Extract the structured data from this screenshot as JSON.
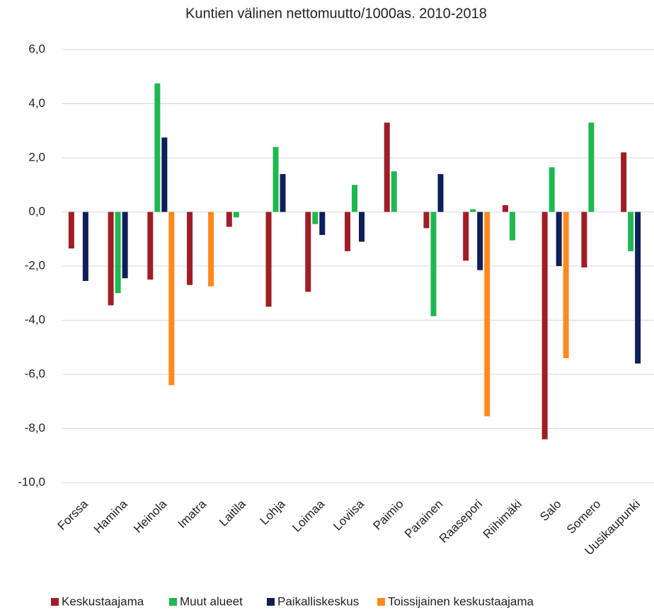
{
  "chart_data": {
    "type": "bar",
    "title": "Kuntien välinen nettomuutto/1000as. 2010-2018",
    "categories": [
      "Forssa",
      "Hamina",
      "Heinola",
      "Imatra",
      "Laitila",
      "Lohja",
      "Loimaa",
      "Loviisa",
      "Paimio",
      "Parainen",
      "Raasepori",
      "Riihimäki",
      "Salo",
      "Somero",
      "Uusikaupunki"
    ],
    "series": [
      {
        "name": "Keskustaajama",
        "color": "#a11d25",
        "values": [
          -1.35,
          -3.45,
          -2.5,
          -2.7,
          -0.55,
          -3.5,
          -2.95,
          -1.45,
          3.3,
          -0.6,
          -1.8,
          0.25,
          -8.4,
          -2.05,
          2.2
        ]
      },
      {
        "name": "Muut alueet",
        "color": "#1fb850",
        "values": [
          null,
          -3.0,
          4.75,
          null,
          -0.2,
          2.4,
          -0.45,
          1.0,
          1.5,
          -3.85,
          0.1,
          -1.05,
          1.65,
          3.3,
          -1.45
        ]
      },
      {
        "name": "Paikalliskeskus",
        "color": "#0f1f5a",
        "values": [
          -2.55,
          -2.45,
          2.75,
          null,
          null,
          1.4,
          -0.85,
          -1.1,
          null,
          1.4,
          -2.15,
          null,
          -2.0,
          null,
          -5.6
        ]
      },
      {
        "name": "Toissijainen keskustaajama",
        "color": "#ff8a1c",
        "values": [
          null,
          null,
          -6.4,
          -2.75,
          null,
          null,
          null,
          null,
          null,
          null,
          -7.55,
          null,
          -5.4,
          null,
          null
        ]
      }
    ],
    "ylim": [
      -10,
      6
    ],
    "yticks": [
      {
        "value": -10,
        "label": "-10,0"
      },
      {
        "value": -8,
        "label": "-8,0"
      },
      {
        "value": -6,
        "label": "-6,0"
      },
      {
        "value": -4,
        "label": "-4,0"
      },
      {
        "value": -2,
        "label": "-2,0"
      },
      {
        "value": 0,
        "label": "0,0"
      },
      {
        "value": 2,
        "label": "2,0"
      },
      {
        "value": 4,
        "label": "4,0"
      },
      {
        "value": 6,
        "label": "6,0"
      }
    ],
    "grid": true
  }
}
